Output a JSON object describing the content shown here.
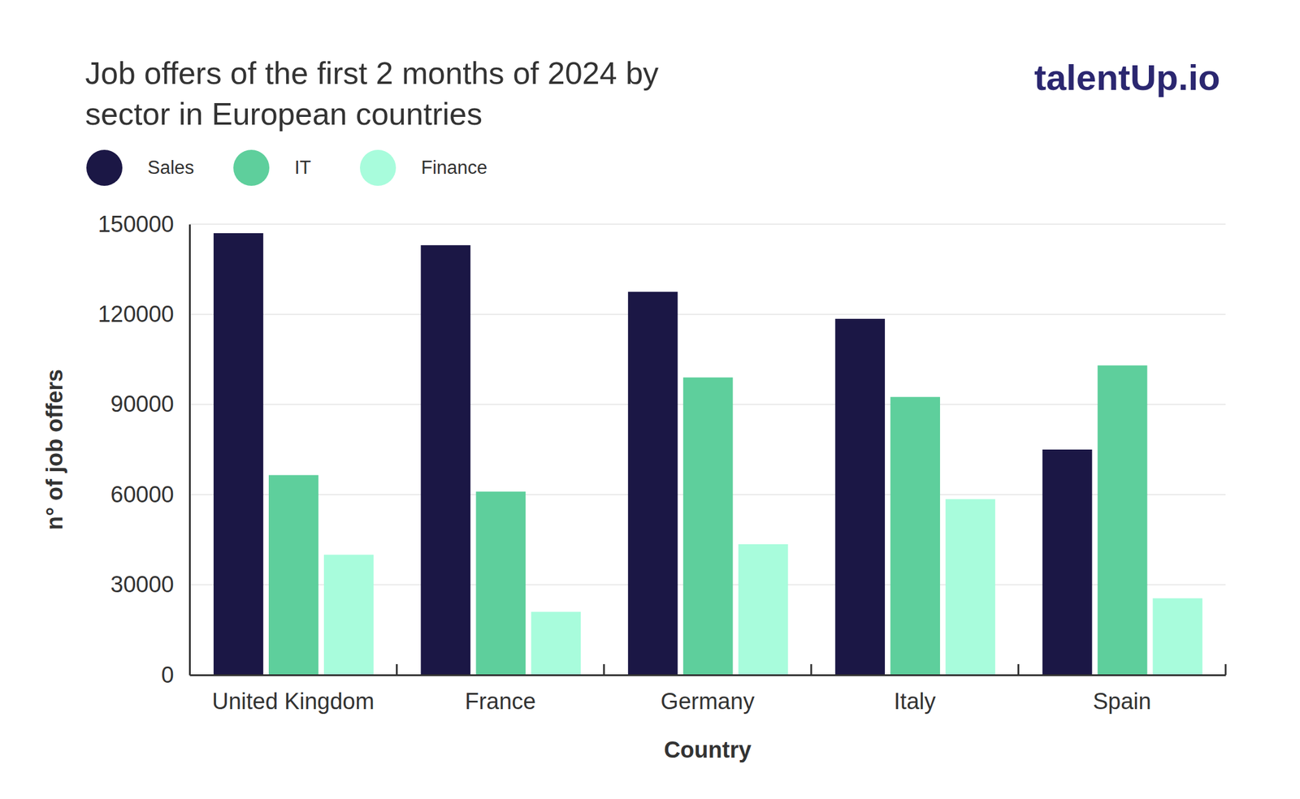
{
  "chart_data": {
    "type": "bar",
    "title": "Job offers of the first 2 months of 2024 by sector in European countries",
    "annotations": [
      "talentUp.io"
    ],
    "x_label": "Country",
    "y_label": "n° of job offers",
    "categories": [
      "United Kingdom",
      "France",
      "Germany",
      "Italy",
      "Spain"
    ],
    "series": [
      {
        "name": "Sales",
        "color": "#1b1745",
        "values": [
          147000,
          143000,
          127500,
          118500,
          75000
        ]
      },
      {
        "name": "IT",
        "color": "#5ecf9c",
        "values": [
          66500,
          61000,
          99000,
          92500,
          103000
        ]
      },
      {
        "name": "Finance",
        "color": "#a8fcdc",
        "values": [
          40000,
          21000,
          43500,
          58500,
          25500
        ]
      }
    ],
    "ylim": [
      0,
      150000
    ],
    "yticks": [
      0,
      30000,
      60000,
      90000,
      120000,
      150000
    ],
    "grid": true,
    "legend": "top-left"
  }
}
